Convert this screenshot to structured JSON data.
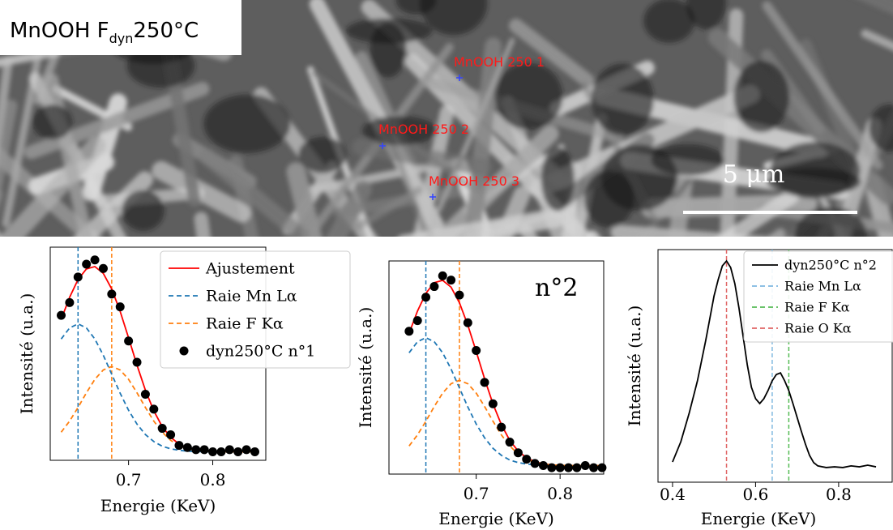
{
  "image": {
    "title": [
      "MnOOH F",
      "dyn",
      "250°C"
    ],
    "points": [
      "MnOOH 250 1",
      "MnOOH 250 2",
      "MnOOH 250 3"
    ],
    "scale_bar": "5 μm"
  },
  "chart_data": [
    {
      "type": "line",
      "xlabel": "Energie (KeV)",
      "ylabel": "Intensité (u.a.)",
      "x": [
        0.62,
        0.63,
        0.64,
        0.65,
        0.66,
        0.67,
        0.68,
        0.69,
        0.7,
        0.71,
        0.72,
        0.73,
        0.74,
        0.75,
        0.76,
        0.77,
        0.78,
        0.79,
        0.8,
        0.81,
        0.82,
        0.83,
        0.84,
        0.85
      ],
      "xlim": [
        0.607,
        0.863
      ],
      "xticks": [
        0.7,
        0.8
      ],
      "ylim": [
        0,
        1
      ],
      "legend": "upper right",
      "series": [
        {
          "name": "Ajustement",
          "color": "#ff0000",
          "style": "solid",
          "values": [
            0.661,
            0.765,
            0.848,
            0.898,
            0.909,
            0.877,
            0.804,
            0.699,
            0.575,
            0.447,
            0.329,
            0.232,
            0.158,
            0.108,
            0.076,
            0.058,
            0.048,
            0.043,
            0.041,
            0.04,
            0.04,
            0.04,
            0.04,
            0.04
          ]
        },
        {
          "name": "Raie Mn Lα",
          "color": "#1f77b4",
          "style": "dashed",
          "values": [
            0.569,
            0.621,
            0.64,
            0.621,
            0.569,
            0.493,
            0.404,
            0.315,
            0.235,
            0.17,
            0.121,
            0.088,
            0.066,
            0.054,
            0.047,
            0.043,
            0.041,
            0.04,
            0.04,
            0.04,
            0.04,
            0.04,
            0.04,
            0.04
          ]
        },
        {
          "name": "Raie F Kα",
          "color": "#ff7f0e",
          "style": "dashed",
          "values": [
            0.132,
            0.184,
            0.248,
            0.317,
            0.38,
            0.424,
            0.44,
            0.424,
            0.38,
            0.317,
            0.248,
            0.184,
            0.132,
            0.094,
            0.069,
            0.055,
            0.047,
            0.043,
            0.041,
            0.04,
            0.04,
            0.04,
            0.04,
            0.04
          ]
        },
        {
          "name": "dyn250°C n°1",
          "color": "#000000",
          "style": "scatter",
          "values": [
            0.68,
            0.74,
            0.86,
            0.92,
            0.94,
            0.9,
            0.78,
            0.72,
            0.56,
            0.46,
            0.31,
            0.24,
            0.15,
            0.12,
            0.07,
            0.06,
            0.05,
            0.05,
            0.04,
            0.04,
            0.05,
            0.04,
            0.05,
            0.04
          ]
        }
      ],
      "vlines": [
        {
          "x": 0.64,
          "color": "#1f77b4"
        },
        {
          "x": 0.68,
          "color": "#ff7f0e"
        }
      ]
    },
    {
      "type": "line",
      "xlabel": "Energie (KeV)",
      "ylabel": "Intensité (u.a.)",
      "annotation": "n°2",
      "x": [
        0.62,
        0.63,
        0.64,
        0.65,
        0.66,
        0.67,
        0.68,
        0.69,
        0.7,
        0.71,
        0.72,
        0.73,
        0.74,
        0.75,
        0.76,
        0.77,
        0.78,
        0.79,
        0.8,
        0.81,
        0.82,
        0.83,
        0.84,
        0.85
      ],
      "xlim": [
        0.596,
        0.852
      ],
      "xticks": [
        0.7,
        0.8
      ],
      "ylim": [
        0,
        1
      ],
      "series": [
        {
          "color": "#ff0000",
          "style": "solid",
          "values": [
            0.661,
            0.765,
            0.848,
            0.898,
            0.909,
            0.877,
            0.804,
            0.699,
            0.575,
            0.447,
            0.329,
            0.232,
            0.158,
            0.108,
            0.076,
            0.058,
            0.048,
            0.043,
            0.041,
            0.04,
            0.04,
            0.04,
            0.04,
            0.04
          ]
        },
        {
          "color": "#1f77b4",
          "style": "dashed",
          "values": [
            0.569,
            0.621,
            0.64,
            0.621,
            0.569,
            0.493,
            0.404,
            0.315,
            0.235,
            0.17,
            0.121,
            0.088,
            0.066,
            0.054,
            0.047,
            0.043,
            0.041,
            0.04,
            0.04,
            0.04,
            0.04,
            0.04,
            0.04,
            0.04
          ]
        },
        {
          "color": "#ff7f0e",
          "style": "dashed",
          "values": [
            0.132,
            0.184,
            0.248,
            0.317,
            0.38,
            0.424,
            0.44,
            0.424,
            0.38,
            0.317,
            0.248,
            0.184,
            0.132,
            0.094,
            0.069,
            0.055,
            0.047,
            0.043,
            0.041,
            0.04,
            0.04,
            0.04,
            0.04,
            0.04
          ]
        },
        {
          "color": "#000000",
          "style": "scatter",
          "values": [
            0.67,
            0.72,
            0.83,
            0.88,
            0.93,
            0.91,
            0.84,
            0.71,
            0.58,
            0.43,
            0.33,
            0.22,
            0.15,
            0.1,
            0.07,
            0.05,
            0.04,
            0.03,
            0.03,
            0.03,
            0.03,
            0.04,
            0.03,
            0.03
          ]
        }
      ],
      "vlines": [
        {
          "x": 0.64,
          "color": "#1f77b4"
        },
        {
          "x": 0.68,
          "color": "#ff7f0e"
        }
      ]
    },
    {
      "type": "line",
      "xlabel": "Energie (KeV)",
      "ylabel": "Intensité (u.a.)",
      "x": [
        0.4,
        0.42,
        0.44,
        0.46,
        0.48,
        0.5,
        0.51,
        0.52,
        0.53,
        0.54,
        0.55,
        0.56,
        0.57,
        0.58,
        0.59,
        0.6,
        0.61,
        0.62,
        0.63,
        0.64,
        0.65,
        0.66,
        0.67,
        0.68,
        0.69,
        0.7,
        0.71,
        0.72,
        0.73,
        0.74,
        0.75,
        0.77,
        0.79,
        0.81,
        0.83,
        0.85,
        0.87,
        0.89
      ],
      "xlim": [
        0.365,
        0.929
      ],
      "xticks": [
        0.4,
        0.6,
        0.8
      ],
      "ylim": [
        0,
        1
      ],
      "legend": "upper right",
      "series": [
        {
          "name": "dyn250°C n°2",
          "color": "#000000",
          "style": "solid",
          "values": [
            0.087,
            0.174,
            0.296,
            0.436,
            0.61,
            0.801,
            0.871,
            0.93,
            0.951,
            0.923,
            0.854,
            0.749,
            0.627,
            0.505,
            0.408,
            0.359,
            0.338,
            0.359,
            0.394,
            0.436,
            0.463,
            0.47,
            0.436,
            0.394,
            0.338,
            0.279,
            0.22,
            0.164,
            0.115,
            0.084,
            0.07,
            0.063,
            0.066,
            0.063,
            0.07,
            0.066,
            0.073,
            0.066
          ]
        }
      ],
      "vlines": [
        {
          "name": "Raie Mn Lα",
          "x": 0.64,
          "color": "#7fb8e0"
        },
        {
          "name": "Raie F Kα",
          "x": 0.68,
          "color": "#55bb55"
        },
        {
          "name": "Raie O Kα",
          "x": 0.53,
          "color": "#e06666"
        }
      ]
    }
  ]
}
